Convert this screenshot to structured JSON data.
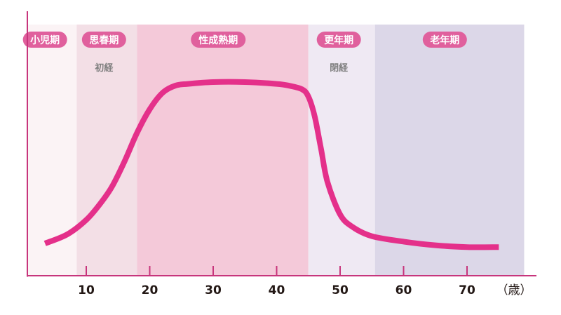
{
  "chart_data": {
    "type": "area",
    "title": "",
    "xlabel": "",
    "ylabel": "",
    "x_unit": "（歳）",
    "xlim": [
      -0.5,
      79
    ],
    "x_ticks": [
      10,
      20,
      30,
      40,
      50,
      60,
      70
    ],
    "grid": false,
    "legend": "none",
    "phases": [
      {
        "name": "小児期",
        "from": -0.5,
        "to": 8.5,
        "color": "#fbf3f5",
        "pill_color": "#e0609d",
        "label_x": 3.5
      },
      {
        "name": "思春期",
        "from": 8.5,
        "to": 18,
        "color": "#f3dfe6",
        "pill_color": "#e0609d",
        "label_x": 12.8
      },
      {
        "name": "性成熟期",
        "from": 18,
        "to": 45,
        "color": "#f4c9d9",
        "pill_color": "#e0609d",
        "label_x": 30.8
      },
      {
        "name": "更年期",
        "from": 45,
        "to": 55.5,
        "color": "#efe9f3",
        "pill_color": "#e0609d",
        "label_x": 49.8
      },
      {
        "name": "老年期",
        "from": 55.5,
        "to": 79,
        "color": "#dcd7e8",
        "pill_color": "#e0609d",
        "label_x": 66.5
      }
    ],
    "events": [
      {
        "label": "初経",
        "x": 12.8
      },
      {
        "label": "閉経",
        "x": 49.8
      }
    ],
    "series": [
      {
        "color": "#e4308a",
        "x": [
          3.5,
          7,
          10,
          12,
          14,
          16,
          18,
          20,
          22,
          24,
          26,
          30,
          35,
          40,
          42,
          44,
          45,
          46,
          47,
          48,
          50,
          52,
          55,
          60,
          65,
          70,
          75
        ],
        "y": [
          0.1,
          0.15,
          0.23,
          0.31,
          0.41,
          0.55,
          0.71,
          0.84,
          0.93,
          0.97,
          0.98,
          0.99,
          0.99,
          0.98,
          0.97,
          0.95,
          0.91,
          0.8,
          0.62,
          0.44,
          0.26,
          0.19,
          0.14,
          0.11,
          0.09,
          0.08,
          0.08
        ]
      }
    ]
  }
}
